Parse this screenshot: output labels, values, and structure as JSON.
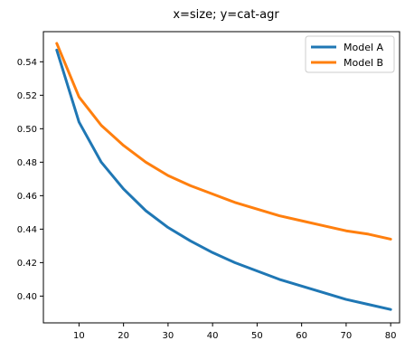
{
  "chart_data": {
    "type": "line",
    "title": "x=size;  y=cat-agr",
    "xlabel": "",
    "ylabel": "",
    "xlim": [
      2,
      82
    ],
    "ylim": [
      0.384,
      0.558
    ],
    "x_ticks": [
      10,
      20,
      30,
      40,
      50,
      60,
      70,
      80
    ],
    "y_ticks": [
      0.4,
      0.42,
      0.44,
      0.46,
      0.48,
      0.5,
      0.52,
      0.54
    ],
    "grid": false,
    "legend_position": "top-right",
    "x": [
      5,
      10,
      15,
      20,
      25,
      30,
      35,
      40,
      45,
      50,
      55,
      60,
      65,
      70,
      75,
      80
    ],
    "series": [
      {
        "name": "Model A",
        "color": "#1f77b4",
        "values": [
          0.547,
          0.504,
          0.48,
          0.464,
          0.451,
          0.441,
          0.433,
          0.426,
          0.42,
          0.415,
          0.41,
          0.406,
          0.402,
          0.398,
          0.395,
          0.392
        ]
      },
      {
        "name": "Model B",
        "color": "#ff7f0e",
        "values": [
          0.551,
          0.519,
          0.502,
          0.49,
          0.48,
          0.472,
          0.466,
          0.461,
          0.456,
          0.452,
          0.448,
          0.445,
          0.442,
          0.439,
          0.437,
          0.434
        ]
      }
    ]
  }
}
